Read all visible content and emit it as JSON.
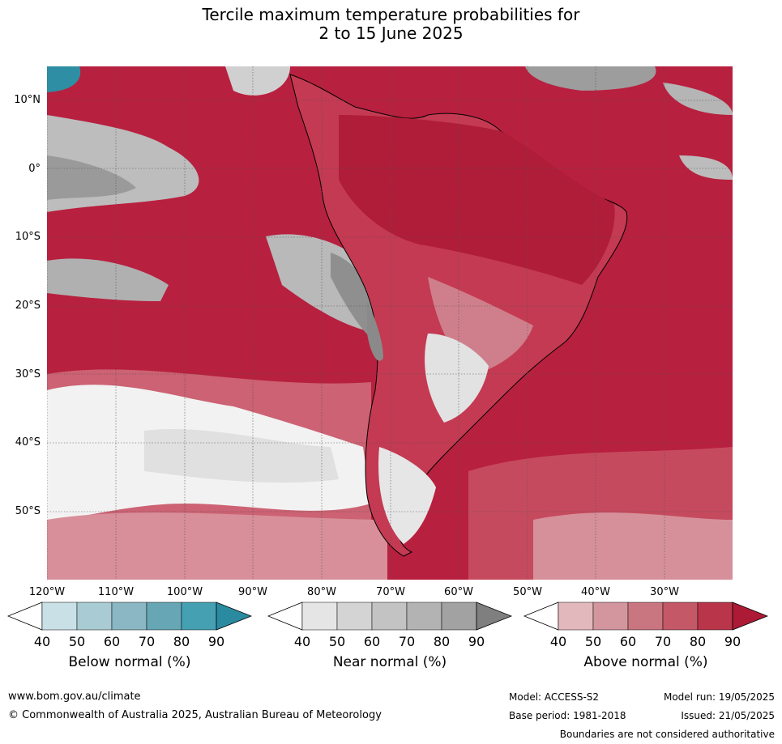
{
  "title": {
    "line1": "Tercile maximum temperature probabilities for",
    "line2": "2 to 15 June 2025"
  },
  "map": {
    "lat_labels": [
      "10°N",
      "0°",
      "10°S",
      "20°S",
      "30°S",
      "40°S",
      "50°S"
    ],
    "lon_labels": [
      "120°W",
      "110°W",
      "100°W",
      "90°W",
      "80°W",
      "70°W",
      "60°W",
      "50°W",
      "40°W",
      "30°W"
    ],
    "colors": {
      "ocean_above": "#b8203f",
      "land_above": "#c43a52",
      "near_gray": "#a8a8a8",
      "dark_gray": "#848484",
      "below_teal": "#2e8fa4"
    }
  },
  "colorbars": [
    {
      "title": "Below normal (%)",
      "ticks": [
        "40",
        "50",
        "60",
        "70",
        "80",
        "90"
      ],
      "colors": [
        "#ffffff",
        "#c8e0e6",
        "#a9cbd3",
        "#8ab7c3",
        "#67a6b5",
        "#45a0b2",
        "#2a8ba0"
      ]
    },
    {
      "title": "Near normal (%)",
      "ticks": [
        "40",
        "50",
        "60",
        "70",
        "80",
        "90"
      ],
      "colors": [
        "#ffffff",
        "#e5e5e5",
        "#d4d4d4",
        "#c3c3c3",
        "#b3b3b3",
        "#a2a2a2",
        "#7f7f7f"
      ]
    },
    {
      "title": "Above normal (%)",
      "ticks": [
        "40",
        "50",
        "60",
        "70",
        "80",
        "90"
      ],
      "colors": [
        "#ffffff",
        "#e2b8bd",
        "#d3969e",
        "#c97680",
        "#c45867",
        "#b93549",
        "#ad1a36"
      ]
    }
  ],
  "footer": {
    "url": "www.bom.gov.au/climate",
    "copyright": "© Commonwealth of Australia 2025, Australian Bureau of Meteorology",
    "model": "Model: ACCESS-S2",
    "base_period": "Base period: 1981-2018",
    "model_run": "Model run: 19/05/2025",
    "issued": "Issued: 21/05/2025",
    "disclaimer": "Boundaries are not considered authoritative"
  }
}
